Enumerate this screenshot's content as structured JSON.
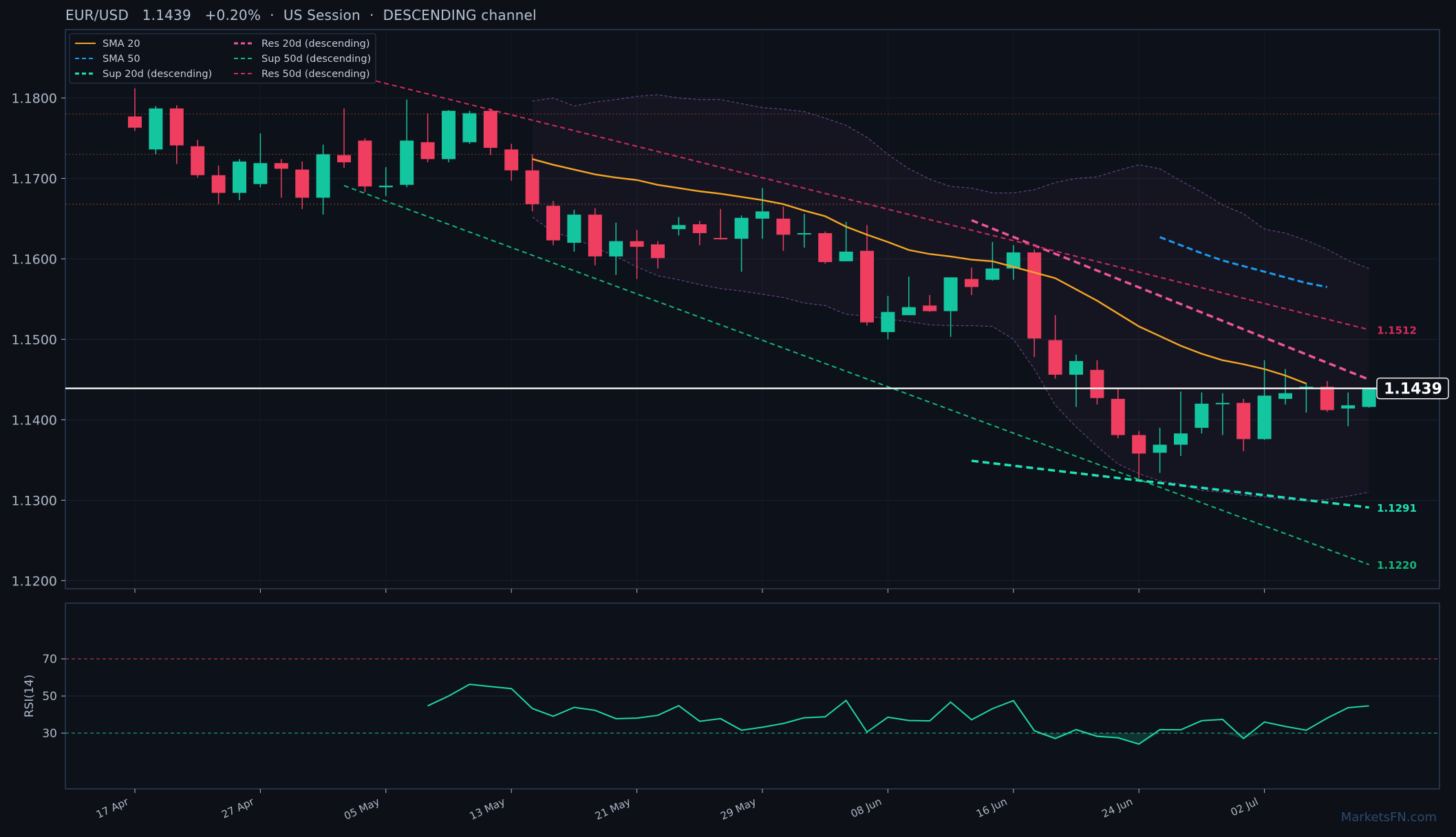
{
  "header": {
    "symbol": "EUR/USD",
    "price": "1.1439",
    "change": "+0.20%",
    "session": "US Session",
    "channel": "DESCENDING channel"
  },
  "watermark": "MarketsFN.com",
  "colors": {
    "background": "#0d1017",
    "panel_border": "#2c3e57",
    "bull": "#14c6a0",
    "bear": "#ef3e5f",
    "sma20": "#f5a623",
    "sma50": "#1a9cf0",
    "sup20": "#1fe3b8",
    "res20": "#f0559a",
    "sup50": "#15b57a",
    "res50": "#d42a5e",
    "rsi": "#1fd6a8",
    "band": "#7b4f9e"
  },
  "chart_data": {
    "type": "candlestick",
    "title": "EUR/USD   1.1439   +0.20%  ·  US Session  ·  DESCENDING channel",
    "ylim": [
      1.119,
      1.1885
    ],
    "y_ticks": [
      "1.1200",
      "1.1300",
      "1.1400",
      "1.1500",
      "1.1600",
      "1.1700",
      "1.1800"
    ],
    "x_ticks": [
      {
        "i": 0,
        "label": "17 Apr"
      },
      {
        "i": 6,
        "label": "27 Apr"
      },
      {
        "i": 12,
        "label": "05 May"
      },
      {
        "i": 18,
        "label": "13 May"
      },
      {
        "i": 24,
        "label": "21 May"
      },
      {
        "i": 30,
        "label": "29 May"
      },
      {
        "i": 36,
        "label": "08 Jun"
      },
      {
        "i": 42,
        "label": "16 Jun"
      },
      {
        "i": 48,
        "label": "24 Jun"
      },
      {
        "i": 54,
        "label": "02 Jul"
      }
    ],
    "candles": [
      [
        1.1777,
        1.1812,
        1.1759,
        1.1763
      ],
      [
        1.1736,
        1.179,
        1.173,
        1.1787
      ],
      [
        1.1787,
        1.1791,
        1.1718,
        1.1741
      ],
      [
        1.174,
        1.1748,
        1.1701,
        1.1704
      ],
      [
        1.1704,
        1.1716,
        1.1668,
        1.1682
      ],
      [
        1.1682,
        1.1724,
        1.1673,
        1.1721
      ],
      [
        1.1693,
        1.1756,
        1.1689,
        1.1719
      ],
      [
        1.1719,
        1.1724,
        1.1676,
        1.1712
      ],
      [
        1.1711,
        1.1721,
        1.1662,
        1.1676
      ],
      [
        1.1676,
        1.1742,
        1.1655,
        1.173
      ],
      [
        1.1729,
        1.1787,
        1.1713,
        1.172
      ],
      [
        1.1747,
        1.175,
        1.1683,
        1.169
      ],
      [
        1.1689,
        1.1714,
        1.1678,
        1.1691
      ],
      [
        1.1692,
        1.1798,
        1.1689,
        1.1747
      ],
      [
        1.1745,
        1.1781,
        1.172,
        1.1724
      ],
      [
        1.1724,
        1.1785,
        1.172,
        1.1784
      ],
      [
        1.1745,
        1.1784,
        1.1743,
        1.1781
      ],
      [
        1.1784,
        1.1787,
        1.1729,
        1.1738
      ],
      [
        1.1736,
        1.1743,
        1.1697,
        1.171
      ],
      [
        1.171,
        1.173,
        1.1659,
        1.1668
      ],
      [
        1.1666,
        1.1672,
        1.1617,
        1.1623
      ],
      [
        1.162,
        1.1661,
        1.1609,
        1.1655
      ],
      [
        1.1655,
        1.1663,
        1.1592,
        1.1603
      ],
      [
        1.1603,
        1.1645,
        1.158,
        1.1622
      ],
      [
        1.1622,
        1.1636,
        1.1575,
        1.1615
      ],
      [
        1.1618,
        1.1622,
        1.1588,
        1.1601
      ],
      [
        1.1637,
        1.1652,
        1.1629,
        1.1642
      ],
      [
        1.1643,
        1.1647,
        1.1617,
        1.1632
      ],
      [
        1.1626,
        1.1662,
        1.1624,
        1.1625
      ],
      [
        1.1625,
        1.1654,
        1.1584,
        1.1651
      ],
      [
        1.165,
        1.1688,
        1.1625,
        1.1659
      ],
      [
        1.165,
        1.1665,
        1.161,
        1.163
      ],
      [
        1.1631,
        1.1656,
        1.1614,
        1.1632
      ],
      [
        1.1632,
        1.1634,
        1.1594,
        1.1596
      ],
      [
        1.1597,
        1.1646,
        1.1597,
        1.1609
      ],
      [
        1.161,
        1.1642,
        1.1517,
        1.1521
      ],
      [
        1.1509,
        1.1554,
        1.15,
        1.1534
      ],
      [
        1.153,
        1.1578,
        1.153,
        1.154
      ],
      [
        1.1542,
        1.1555,
        1.1534,
        1.1535
      ],
      [
        1.1535,
        1.1577,
        1.1503,
        1.1577
      ],
      [
        1.1575,
        1.1589,
        1.1555,
        1.1565
      ],
      [
        1.1574,
        1.1621,
        1.1573,
        1.1588
      ],
      [
        1.1588,
        1.1617,
        1.1574,
        1.1608
      ],
      [
        1.1608,
        1.1612,
        1.1478,
        1.1501
      ],
      [
        1.1499,
        1.153,
        1.1451,
        1.1456
      ],
      [
        1.1456,
        1.1481,
        1.1416,
        1.1473
      ],
      [
        1.1462,
        1.1474,
        1.1419,
        1.1427
      ],
      [
        1.1426,
        1.1439,
        1.1377,
        1.1381
      ],
      [
        1.1381,
        1.1386,
        1.1327,
        1.1358
      ],
      [
        1.1359,
        1.139,
        1.1334,
        1.1369
      ],
      [
        1.1369,
        1.1435,
        1.1355,
        1.1383
      ],
      [
        1.139,
        1.1434,
        1.1383,
        1.142
      ],
      [
        1.142,
        1.1433,
        1.1381,
        1.1421
      ],
      [
        1.1421,
        1.1426,
        1.1361,
        1.1376
      ],
      [
        1.1376,
        1.1474,
        1.1375,
        1.143
      ],
      [
        1.1426,
        1.1463,
        1.1419,
        1.1433
      ],
      [
        1.1441,
        1.1446,
        1.1409,
        1.1441
      ],
      [
        1.1441,
        1.1448,
        1.141,
        1.1412
      ],
      [
        1.1414,
        1.1434,
        1.1392,
        1.1418
      ],
      [
        1.1416,
        1.144,
        1.1415,
        1.1439
      ]
    ],
    "series": [
      {
        "name": "SMA 20",
        "start": 19,
        "values": [
          1.1724,
          1.1717,
          1.1711,
          1.1705,
          1.1701,
          1.1698,
          1.1692,
          1.1688,
          1.1684,
          1.1681,
          1.1677,
          1.1673,
          1.1668,
          1.166,
          1.1653,
          1.164,
          1.163,
          1.1621,
          1.1611,
          1.1606,
          1.1603,
          1.1599,
          1.1597,
          1.159,
          1.1583,
          1.1576,
          1.1562,
          1.1548,
          1.1532,
          1.1516,
          1.1504,
          1.1492,
          1.1482,
          1.1474,
          1.1469,
          1.1463,
          1.1455,
          1.1445
        ]
      },
      {
        "name": "SMA 50",
        "start": 49,
        "values": [
          1.1627,
          1.1617,
          1.1607,
          1.1598,
          1.1591,
          1.1584,
          1.1577,
          1.157,
          1.1565
        ]
      },
      {
        "name": "Sup 20d (descending)",
        "start": 40,
        "end": 59,
        "from": 1.1349,
        "to": 1.1291
      },
      {
        "name": "Res 20d (descending)",
        "start": 40,
        "end": 59,
        "from": 1.1648,
        "to": 1.145
      },
      {
        "name": "Sup 50d (descending)",
        "start": 10,
        "end": 59,
        "from": 1.1691,
        "to": 1.122
      },
      {
        "name": "Res 50d (descending)",
        "start": 10,
        "end": 59,
        "from": 1.1831,
        "to": 1.1512
      }
    ],
    "band": {
      "start": 19,
      "upper": [
        1.1796,
        1.18,
        1.179,
        1.1795,
        1.1798,
        1.1802,
        1.1804,
        1.18,
        1.1798,
        1.1798,
        1.1793,
        1.1788,
        1.1786,
        1.1783,
        1.1775,
        1.1766,
        1.1751,
        1.173,
        1.1712,
        1.1699,
        1.169,
        1.1688,
        1.1682,
        1.1682,
        1.1686,
        1.1695,
        1.17,
        1.1702,
        1.171,
        1.1717,
        1.1712,
        1.1697,
        1.1683,
        1.1667,
        1.1656,
        1.1637,
        1.1632,
        1.1623,
        1.1612,
        1.1598,
        1.1588
      ],
      "lower": [
        1.1652,
        1.1633,
        1.1626,
        1.1614,
        1.1603,
        1.159,
        1.1579,
        1.1574,
        1.1568,
        1.1563,
        1.156,
        1.1556,
        1.1552,
        1.1545,
        1.1542,
        1.1531,
        1.1529,
        1.1525,
        1.1522,
        1.1518,
        1.1517,
        1.1517,
        1.1516,
        1.15,
        1.1463,
        1.1418,
        1.1391,
        1.1367,
        1.1345,
        1.1333,
        1.1324,
        1.132,
        1.1312,
        1.131,
        1.1306,
        1.1304,
        1.1301,
        1.1299,
        1.1301,
        1.1305,
        1.131
      ]
    },
    "levels": [
      1.178,
      1.173,
      1.1668
    ],
    "current_price": 1.1439,
    "current_price_label": "1.1439",
    "line_labels": [
      {
        "text": "1.1512",
        "value": 1.1512,
        "color": "#d42a5e"
      },
      {
        "text": "1.1291",
        "value": 1.1291,
        "color": "#1fe3b8"
      },
      {
        "text": "1.1220",
        "value": 1.122,
        "color": "#15b57a"
      }
    ],
    "legend": {
      "placement": "top-left",
      "entries": [
        {
          "name": "SMA 20",
          "color": "#f5a623",
          "dash": "solid"
        },
        {
          "name": "Res 20d (descending)",
          "color": "#f0559a",
          "dash": "dashed"
        },
        {
          "name": "SMA 50",
          "color": "#1a9cf0",
          "dash": "dashed"
        },
        {
          "name": "Sup 50d (descending)",
          "color": "#15b57a",
          "dash": "dashed"
        },
        {
          "name": "Sup 20d (descending)",
          "color": "#1fe3b8",
          "dash": "dashed"
        },
        {
          "name": "Res 50d (descending)",
          "color": "#d42a5e",
          "dash": "dashed"
        }
      ]
    },
    "rsi": {
      "ylabel": "RSI(14)",
      "ylim": [
        0,
        100
      ],
      "ticks": [
        "30",
        "50",
        "70"
      ],
      "start": 14,
      "values": [
        44.7,
        50.0,
        56.3,
        55.1,
        54.0,
        43.3,
        39.1,
        43.9,
        42.3,
        37.8,
        38.1,
        39.6,
        44.8,
        36.4,
        37.8,
        31.6,
        33.2,
        35.2,
        38.3,
        38.8,
        47.6,
        30.6,
        38.6,
        36.8,
        36.6,
        46.7,
        37.2,
        43.2,
        47.5,
        31.3,
        27.1,
        31.9,
        28.3,
        27.5,
        24.1,
        31.9,
        31.8,
        36.7,
        37.4,
        27.1,
        36.0,
        33.6,
        31.6,
        38.1,
        43.7,
        44.7
      ]
    }
  }
}
